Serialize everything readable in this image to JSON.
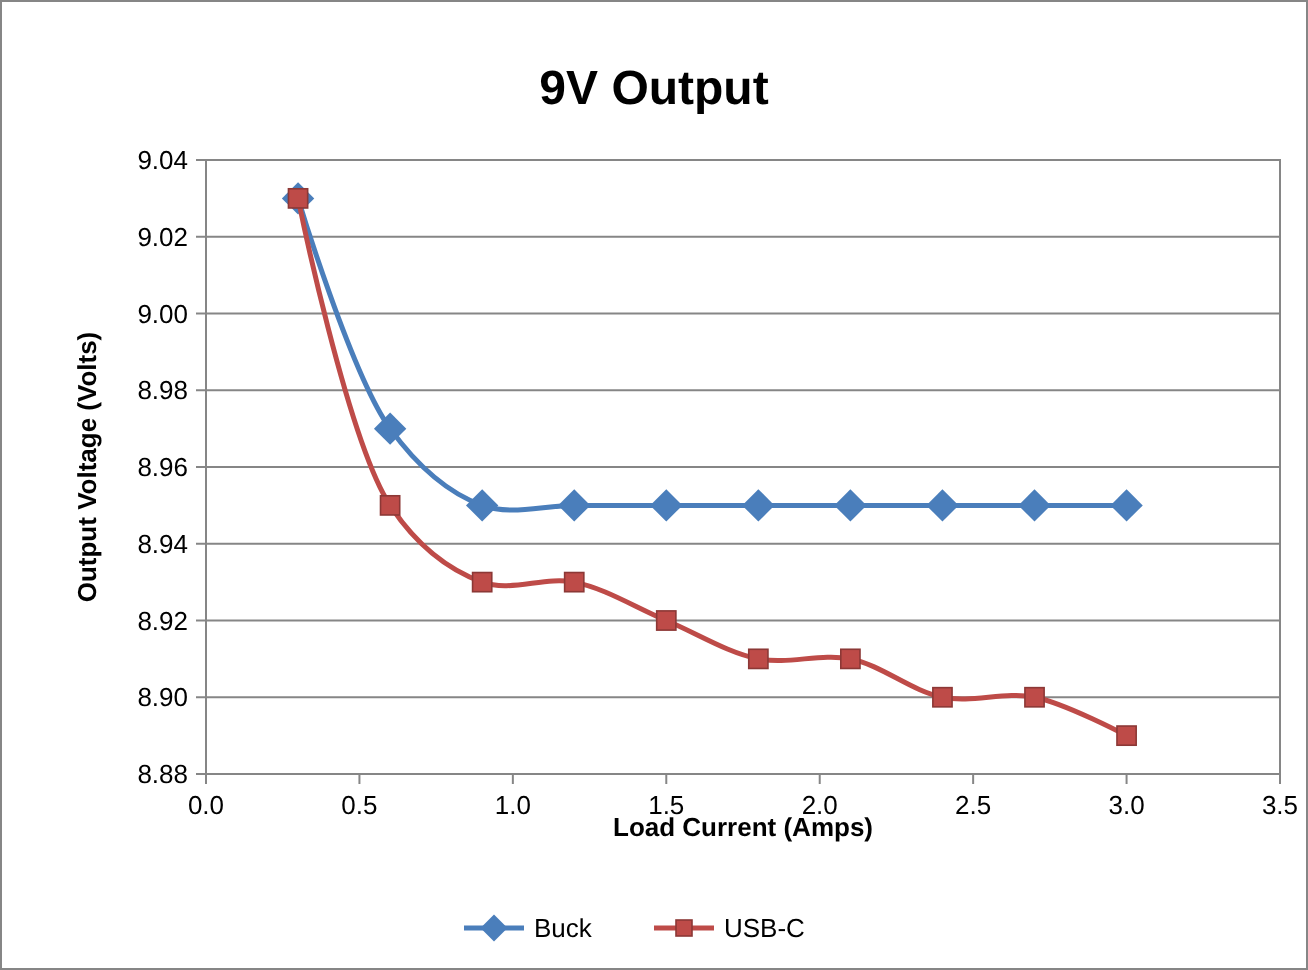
{
  "chart_data": {
    "type": "line",
    "title": "9V Output",
    "xlabel": "Load Current (Amps)",
    "ylabel": "Output Voltage (Volts)",
    "x": [
      0.3,
      0.6,
      0.9,
      1.2,
      1.5,
      1.8,
      2.1,
      2.4,
      2.7,
      3.0
    ],
    "series": [
      {
        "name": "Buck",
        "color": "#4a7ebb",
        "marker": "diamond",
        "values": [
          9.03,
          8.97,
          8.95,
          8.95,
          8.95,
          8.95,
          8.95,
          8.95,
          8.95,
          8.95
        ]
      },
      {
        "name": "USB-C",
        "color": "#be4b48",
        "marker": "square",
        "values": [
          9.03,
          8.95,
          8.93,
          8.93,
          8.92,
          8.91,
          8.91,
          8.9,
          8.9,
          8.89
        ]
      }
    ],
    "xlim": [
      0,
      3.5
    ],
    "xticks": [
      {
        "value": 0,
        "label": "0.0"
      },
      {
        "value": 0.5,
        "label": "0.5"
      },
      {
        "value": 1,
        "label": "1.0"
      },
      {
        "value": 1.5,
        "label": "1.5"
      },
      {
        "value": 2,
        "label": "2.0"
      },
      {
        "value": 2.5,
        "label": "2.5"
      },
      {
        "value": 3,
        "label": "3.0"
      },
      {
        "value": 3.5,
        "label": "3.5"
      }
    ],
    "ylim": [
      8.88,
      9.04
    ],
    "yticks": [
      {
        "value": 8.88,
        "label": "8.88"
      },
      {
        "value": 8.9,
        "label": "8.90"
      },
      {
        "value": 8.92,
        "label": "8.92"
      },
      {
        "value": 8.94,
        "label": "8.94"
      },
      {
        "value": 8.96,
        "label": "8.96"
      },
      {
        "value": 8.98,
        "label": "8.98"
      },
      {
        "value": 9.0,
        "label": "9.00"
      },
      {
        "value": 9.02,
        "label": "9.02"
      },
      {
        "value": 9.04,
        "label": "9.04"
      }
    ],
    "grid": "y",
    "legend": "bottom",
    "line_style": "solid"
  }
}
